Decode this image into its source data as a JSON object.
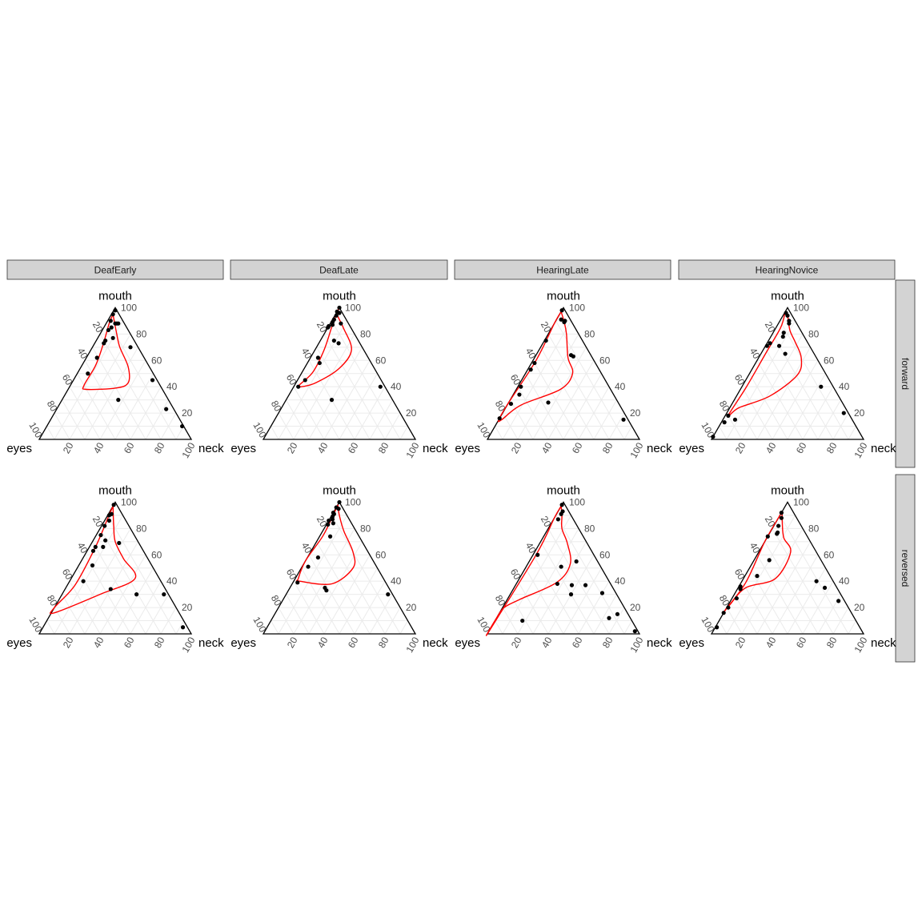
{
  "figure": {
    "colors": {
      "strip_fill": "#d3d3d3",
      "strip_border": "#333333",
      "grid": "#ebebeb",
      "outline": "#000000",
      "points": "#000000",
      "contour": "#ff0000"
    }
  },
  "chart_data": {
    "type": "scatter",
    "subtype": "ternary-facet-grid",
    "facet_columns": [
      "DeafEarly",
      "DeafLate",
      "HearingLate",
      "HearingNovice"
    ],
    "facet_rows": [
      "forward",
      "reversed"
    ],
    "axes": {
      "top": "mouth",
      "left": "eyes",
      "right": "neck"
    },
    "ticks": [
      20,
      40,
      60,
      80,
      100
    ],
    "grid": true,
    "panels": [
      {
        "column": "DeafEarly",
        "row": "forward",
        "points": [
          [
            1,
            98,
            1
          ],
          [
            4,
            95,
            1
          ],
          [
            8,
            90,
            2
          ],
          [
            6,
            88,
            6
          ],
          [
            13,
            83,
            4
          ],
          [
            5,
            88,
            7
          ],
          [
            4,
            88,
            8
          ],
          [
            10,
            85,
            5
          ],
          [
            19,
            75,
            6
          ],
          [
            21,
            73,
            6
          ],
          [
            13,
            77,
            10
          ],
          [
            5,
            70,
            25
          ],
          [
            31,
            62,
            7
          ],
          [
            43,
            50,
            7
          ],
          [
            33,
            30,
            37
          ],
          [
            3,
            45,
            52
          ],
          [
            5,
            23,
            72
          ],
          [
            1,
            10,
            89
          ]
        ],
        "contour": [
          [
            4,
            95,
            1
          ],
          [
            9,
            80,
            11
          ],
          [
            12,
            70,
            18
          ],
          [
            14,
            55,
            31
          ],
          [
            20,
            43,
            37
          ],
          [
            30,
            39,
            31
          ],
          [
            50,
            38,
            12
          ],
          [
            50,
            41,
            9
          ],
          [
            35,
            56,
            9
          ],
          [
            22,
            72,
            6
          ],
          [
            10,
            88,
            2
          ],
          [
            4,
            95,
            1
          ]
        ]
      },
      {
        "column": "DeafLate",
        "row": "forward",
        "points": [
          [
            0,
            100,
            0
          ],
          [
            3,
            97,
            0
          ],
          [
            2,
            96,
            2
          ],
          [
            5,
            94,
            1
          ],
          [
            8,
            91,
            1
          ],
          [
            10,
            89,
            1
          ],
          [
            14,
            86,
            0
          ],
          [
            11,
            87,
            2
          ],
          [
            15,
            85,
            0
          ],
          [
            5,
            88,
            7
          ],
          [
            14,
            73,
            13
          ],
          [
            16,
            75,
            9
          ],
          [
            33,
            62,
            5
          ],
          [
            34,
            58,
            8
          ],
          [
            50,
            45,
            5
          ],
          [
            57,
            40,
            3
          ],
          [
            40,
            30,
            30
          ],
          [
            3,
            40,
            57
          ]
        ],
        "contour": [
          [
            1,
            99,
            0
          ],
          [
            4,
            95,
            1
          ],
          [
            5,
            85,
            10
          ],
          [
            8,
            68,
            24
          ],
          [
            23,
            54,
            23
          ],
          [
            44,
            43,
            13
          ],
          [
            55,
            40,
            5
          ],
          [
            56,
            41,
            3
          ],
          [
            42,
            51,
            7
          ],
          [
            26,
            68,
            6
          ],
          [
            11,
            87,
            2
          ],
          [
            1,
            99,
            0
          ]
        ]
      },
      {
        "column": "HearingLate",
        "row": "forward",
        "points": [
          [
            2,
            98,
            0
          ],
          [
            6,
            91,
            3
          ],
          [
            4,
            90,
            6
          ],
          [
            5,
            89,
            6
          ],
          [
            24,
            75,
            1
          ],
          [
            12,
            63,
            25
          ],
          [
            13,
            64,
            23
          ],
          [
            40,
            58,
            2
          ],
          [
            45,
            53,
            2
          ],
          [
            58,
            40,
            2
          ],
          [
            62,
            34,
            4
          ],
          [
            71,
            27,
            2
          ],
          [
            84,
            16,
            0
          ],
          [
            46,
            28,
            26
          ],
          [
            3,
            15,
            82
          ]
        ],
        "contour": [
          [
            3,
            97,
            0
          ],
          [
            5,
            89,
            6
          ],
          [
            8,
            80,
            12
          ],
          [
            16,
            62,
            22
          ],
          [
            19,
            50,
            31
          ],
          [
            33,
            38,
            29
          ],
          [
            65,
            26,
            9
          ],
          [
            83,
            15,
            2
          ],
          [
            85,
            15,
            0
          ],
          [
            72,
            28,
            0
          ],
          [
            38,
            60,
            2
          ],
          [
            12,
            88,
            0
          ],
          [
            3,
            97,
            0
          ]
        ]
      },
      {
        "column": "HearingNovice",
        "row": "forward",
        "points": [
          [
            3,
            96,
            1
          ],
          [
            3,
            94,
            3
          ],
          [
            4,
            90,
            6
          ],
          [
            5,
            88,
            7
          ],
          [
            12,
            81,
            7
          ],
          [
            14,
            78,
            8
          ],
          [
            20,
            71,
            9
          ],
          [
            25,
            73,
            2
          ],
          [
            28,
            71,
            1
          ],
          [
            19,
            65,
            16
          ],
          [
            77,
            15,
            8
          ],
          [
            80,
            18,
            2
          ],
          [
            85,
            13,
            2
          ],
          [
            98,
            2,
            0
          ],
          [
            8,
            40,
            52
          ],
          [
            3,
            20,
            77
          ]
        ],
        "contour": [
          [
            3,
            97,
            0
          ],
          [
            3,
            94,
            3
          ],
          [
            7,
            83,
            10
          ],
          [
            8,
            74,
            18
          ],
          [
            10,
            62,
            28
          ],
          [
            19,
            49,
            32
          ],
          [
            45,
            33,
            22
          ],
          [
            70,
            24,
            6
          ],
          [
            80,
            18,
            2
          ],
          [
            58,
            39,
            3
          ],
          [
            31,
            66,
            3
          ],
          [
            12,
            85,
            3
          ],
          [
            3,
            97,
            0
          ]
        ]
      },
      {
        "column": "DeafEarly",
        "row": "reversed",
        "points": [
          [
            2,
            98,
            0
          ],
          [
            7,
            91,
            2
          ],
          [
            9,
            90,
            1
          ],
          [
            16,
            82,
            2
          ],
          [
            11,
            86,
            3
          ],
          [
            22,
            75,
            3
          ],
          [
            21,
            71,
            8
          ],
          [
            25,
            66,
            9
          ],
          [
            30,
            66,
            4
          ],
          [
            33,
            63,
            4
          ],
          [
            39,
            52,
            9
          ],
          [
            13,
            69,
            18
          ],
          [
            51,
            40,
            9
          ],
          [
            36,
            34,
            30
          ],
          [
            21,
            30,
            49
          ],
          [
            3,
            30,
            67
          ],
          [
            3,
            5,
            92
          ]
        ],
        "contour": [
          [
            3,
            97,
            0
          ],
          [
            10,
            82,
            8
          ],
          [
            15,
            70,
            15
          ],
          [
            16,
            57,
            27
          ],
          [
            16,
            42,
            42
          ],
          [
            45,
            30,
            25
          ],
          [
            82,
            16,
            2
          ],
          [
            80,
            20,
            0
          ],
          [
            58,
            37,
            5
          ],
          [
            30,
            66,
            4
          ],
          [
            10,
            89,
            1
          ],
          [
            3,
            97,
            0
          ]
        ]
      },
      {
        "column": "DeafLate",
        "row": "reversed",
        "points": [
          [
            0,
            100,
            0
          ],
          [
            4,
            96,
            0
          ],
          [
            3,
            95,
            2
          ],
          [
            8,
            92,
            0
          ],
          [
            8,
            91,
            1
          ],
          [
            10,
            89,
            1
          ],
          [
            14,
            86,
            0
          ],
          [
            11,
            87,
            2
          ],
          [
            12,
            84,
            4
          ],
          [
            16,
            83,
            1
          ],
          [
            19,
            74,
            7
          ],
          [
            35,
            58,
            7
          ],
          [
            45,
            51,
            4
          ],
          [
            42,
            35,
            23
          ],
          [
            42,
            33,
            25
          ],
          [
            58,
            39,
            3
          ],
          [
            3,
            30,
            67
          ]
        ],
        "contour": [
          [
            2,
            98,
            0
          ],
          [
            5,
            90,
            5
          ],
          [
            8,
            78,
            14
          ],
          [
            10,
            62,
            28
          ],
          [
            16,
            50,
            34
          ],
          [
            36,
            38,
            26
          ],
          [
            56,
            40,
            4
          ],
          [
            56,
            42,
            2
          ],
          [
            44,
            56,
            0
          ],
          [
            24,
            74,
            2
          ],
          [
            10,
            89,
            1
          ],
          [
            2,
            98,
            0
          ]
        ]
      },
      {
        "column": "HearingLate",
        "row": "reversed",
        "points": [
          [
            2,
            98,
            0
          ],
          [
            4,
            93,
            3
          ],
          [
            6,
            91,
            3
          ],
          [
            10,
            87,
            3
          ],
          [
            37,
            60,
            3
          ],
          [
            26,
            51,
            23
          ],
          [
            14,
            55,
            31
          ],
          [
            35,
            38,
            27
          ],
          [
            17,
            37,
            46
          ],
          [
            26,
            37,
            37
          ],
          [
            30,
            30,
            40
          ],
          [
            9,
            31,
            60
          ],
          [
            14,
            12,
            74
          ],
          [
            7,
            15,
            78
          ],
          [
            2,
            2,
            96
          ],
          [
            72,
            10,
            18
          ]
        ],
        "contour": [
          [
            3,
            97,
            0
          ],
          [
            6,
            90,
            4
          ],
          [
            11,
            80,
            9
          ],
          [
            13,
            69,
            18
          ],
          [
            19,
            53,
            28
          ],
          [
            35,
            39,
            26
          ],
          [
            66,
            26,
            8
          ],
          [
            79,
            20,
            1
          ],
          [
            88,
            12,
            0
          ],
          [
            99,
            1,
            0
          ],
          [
            38,
            60,
            2
          ],
          [
            12,
            88,
            0
          ],
          [
            3,
            97,
            0
          ]
        ]
      },
      {
        "column": "HearingNovice",
        "row": "reversed",
        "points": [
          [
            8,
            92,
            0
          ],
          [
            10,
            88,
            2
          ],
          [
            15,
            82,
            3
          ],
          [
            18,
            77,
            5
          ],
          [
            19,
            76,
            5
          ],
          [
            26,
            74,
            0
          ],
          [
            34,
            56,
            10
          ],
          [
            48,
            44,
            8
          ],
          [
            63,
            36,
            1
          ],
          [
            64,
            34,
            2
          ],
          [
            70,
            27,
            3
          ],
          [
            79,
            20,
            1
          ],
          [
            84,
            16,
            0
          ],
          [
            94,
            5,
            1
          ],
          [
            11,
            40,
            49
          ],
          [
            8,
            35,
            57
          ],
          [
            4,
            25,
            71
          ]
        ],
        "contour": [
          [
            7,
            93,
            0
          ],
          [
            11,
            85,
            4
          ],
          [
            16,
            73,
            11
          ],
          [
            17,
            62,
            21
          ],
          [
            37,
            42,
            21
          ],
          [
            60,
            35,
            5
          ],
          [
            77,
            22,
            1
          ],
          [
            82,
            18,
            0
          ],
          [
            58,
            39,
            3
          ],
          [
            30,
            70,
            0
          ],
          [
            10,
            90,
            0
          ],
          [
            7,
            93,
            0
          ]
        ]
      }
    ]
  }
}
